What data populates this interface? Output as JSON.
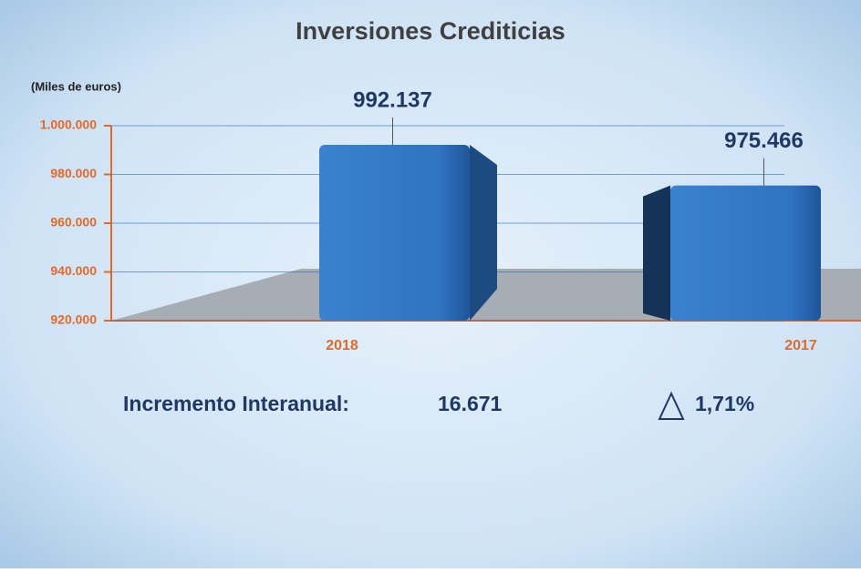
{
  "chart_data": {
    "type": "bar3d",
    "title": "Inversiones Crediticias",
    "y_label": "(Miles de euros)",
    "categories": [
      "2018",
      "2017"
    ],
    "values": [
      992137,
      975466
    ],
    "value_labels": [
      "992.137",
      "975.466"
    ],
    "color": "#2e75c6",
    "ylim": [
      920000,
      1000000
    ],
    "yticks": [
      {
        "value": 920000,
        "label": "920.000"
      },
      {
        "value": 940000,
        "label": "940.000"
      },
      {
        "value": 960000,
        "label": "960.000"
      },
      {
        "value": 980000,
        "label": "980.000"
      },
      {
        "value": 1000000,
        "label": "1.000.000"
      }
    ],
    "grid": true,
    "annotations": {
      "label": "Incremento Interanual:",
      "difference": "16.671",
      "percent": "1,71%"
    }
  }
}
